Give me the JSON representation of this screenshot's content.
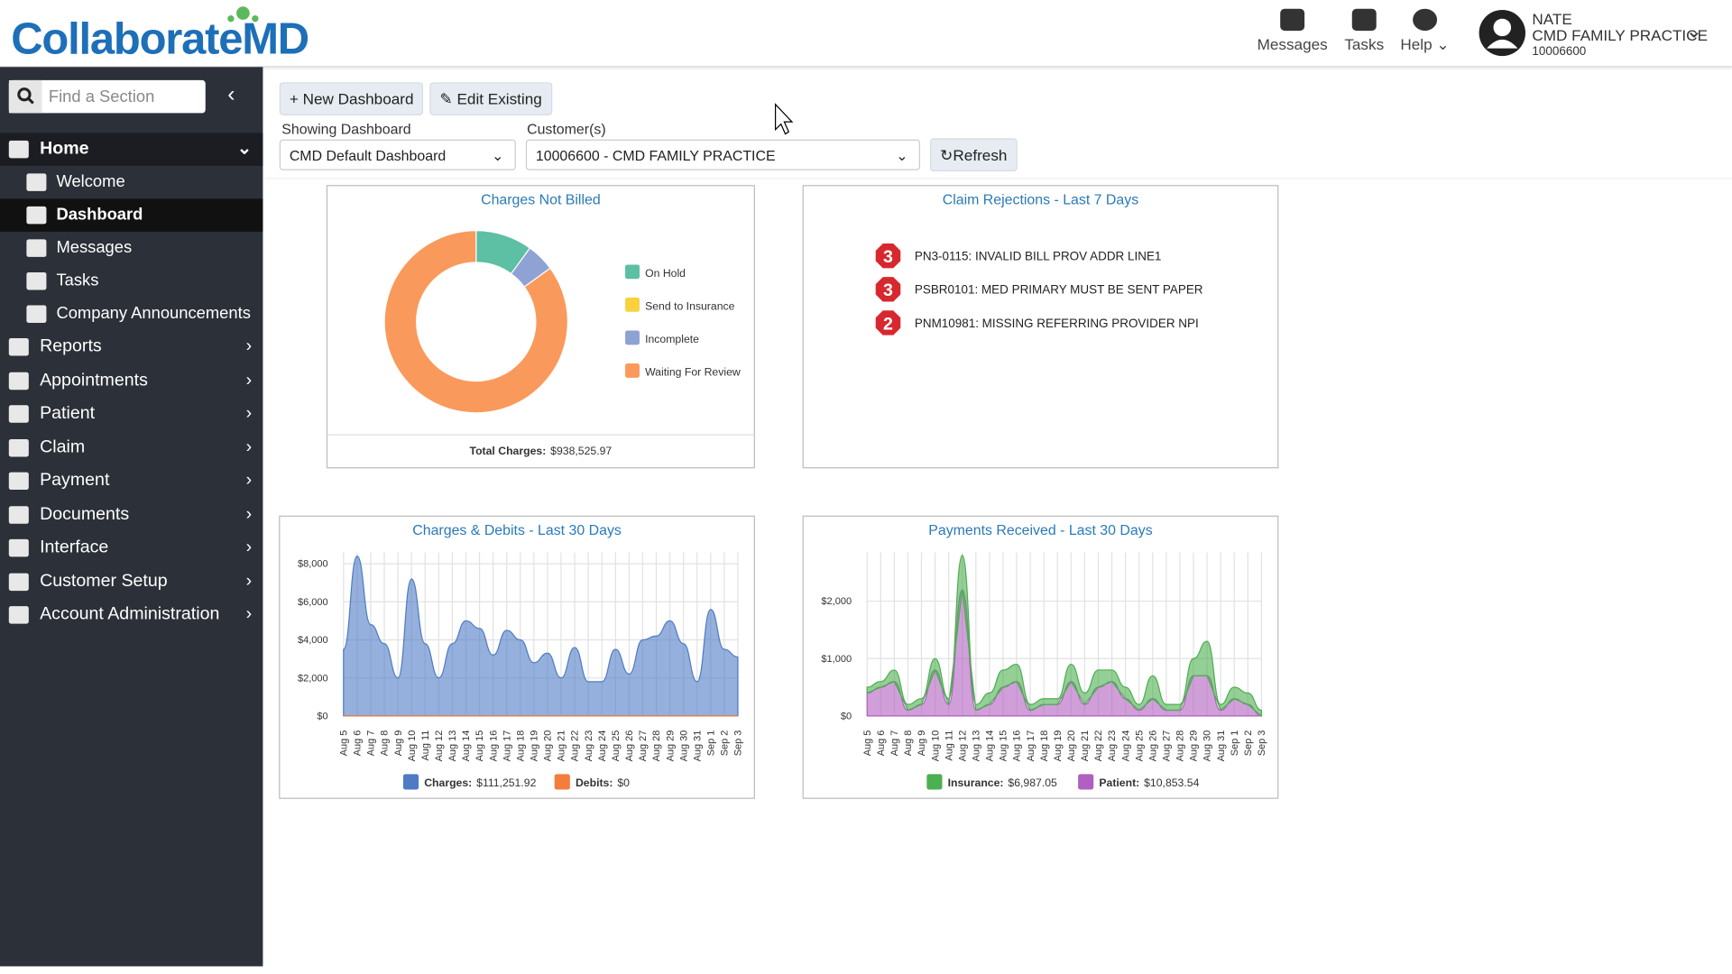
{
  "header": {
    "logo": {
      "main": "Collaborate",
      "accent": "MD"
    },
    "nav": [
      "Messages",
      "Tasks",
      "Help"
    ],
    "user": {
      "name": "NATE",
      "practice": "CMD FAMILY PRACTICE",
      "id": "10006600"
    }
  },
  "sidebar": {
    "search_placeholder": "Find a Section",
    "home": "Home",
    "home_items": [
      "Welcome",
      "Dashboard",
      "Messages",
      "Tasks",
      "Company Announcements"
    ],
    "sections": [
      "Reports",
      "Appointments",
      "Patient",
      "Claim",
      "Payment",
      "Documents",
      "Interface",
      "Customer Setup",
      "Account Administration"
    ]
  },
  "toolbar": {
    "new_dashboard": "New Dashboard",
    "edit_existing": "Edit Existing",
    "showing_label": "Showing Dashboard",
    "showing_value": "CMD Default Dashboard",
    "customer_label": "Customer(s)",
    "customer_value": "10006600 - CMD FAMILY PRACTICE",
    "refresh": "Refresh"
  },
  "claim_rejections": {
    "title": "Claim Rejections - Last 7 Days",
    "items": [
      {
        "count": 3,
        "text": "PN3-0115: INVALID BILL PROV ADDR LINE1"
      },
      {
        "count": 3,
        "text": "PSBR0101: MED PRIMARY MUST BE SENT PAPER"
      },
      {
        "count": 2,
        "text": "PNM10981: MISSING REFERRING PROVIDER NPI"
      }
    ]
  },
  "chart_data": [
    {
      "type": "pie",
      "title": "Charges Not Billed",
      "categories": [
        "On Hold",
        "Send to Insurance",
        "Incomplete",
        "Waiting For Review"
      ],
      "values": [
        10,
        0,
        5,
        85
      ],
      "colors": [
        "#5dbfa3",
        "#f7d23c",
        "#8fa2d4",
        "#f99a5c"
      ],
      "footer_label": "Total Charges:",
      "footer_value": "$938,525.97"
    },
    {
      "type": "area",
      "title": "Charges & Debits - Last 30 Days",
      "categories": [
        "Aug 5",
        "Aug 6",
        "Aug 7",
        "Aug 8",
        "Aug 9",
        "Aug 10",
        "Aug 11",
        "Aug 12",
        "Aug 13",
        "Aug 14",
        "Aug 15",
        "Aug 16",
        "Aug 17",
        "Aug 18",
        "Aug 19",
        "Aug 20",
        "Aug 21",
        "Aug 22",
        "Aug 23",
        "Aug 24",
        "Aug 25",
        "Aug 26",
        "Aug 27",
        "Aug 28",
        "Aug 29",
        "Aug 30",
        "Aug 31",
        "Sep 1",
        "Sep 2",
        "Sep 3"
      ],
      "ylim": [
        0,
        8600
      ],
      "yticks": [
        {
          "value": 0,
          "label": "$0"
        },
        {
          "value": 2000,
          "label": "$2,000"
        },
        {
          "value": 4000,
          "label": "$4,000"
        },
        {
          "value": 6000,
          "label": "$6,000"
        },
        {
          "value": 8000,
          "label": "$8,000"
        }
      ],
      "stacked": false,
      "series": [
        {
          "name": "Charges:",
          "total": "$111,251.92",
          "color": "#4f7bc4",
          "values": [
            3500,
            8400,
            4800,
            3800,
            2000,
            7200,
            3800,
            2000,
            3800,
            5000,
            4600,
            3200,
            4500,
            4000,
            2800,
            3300,
            2000,
            3600,
            1800,
            1800,
            3500,
            2200,
            4000,
            4200,
            5000,
            3800,
            1800,
            5600,
            3500,
            3100
          ]
        },
        {
          "name": "Debits:",
          "total": "$0",
          "color": "#f47c3c",
          "values": [
            0,
            0,
            0,
            0,
            0,
            0,
            0,
            0,
            0,
            0,
            0,
            0,
            0,
            0,
            0,
            0,
            0,
            0,
            0,
            0,
            0,
            0,
            0,
            0,
            0,
            0,
            0,
            0,
            0,
            0
          ]
        }
      ]
    },
    {
      "type": "area",
      "title": "Payments Received - Last 30 Days",
      "categories": [
        "Aug 5",
        "Aug 6",
        "Aug 7",
        "Aug 8",
        "Aug 9",
        "Aug 10",
        "Aug 11",
        "Aug 12",
        "Aug 13",
        "Aug 14",
        "Aug 15",
        "Aug 16",
        "Aug 17",
        "Aug 18",
        "Aug 19",
        "Aug 20",
        "Aug 21",
        "Aug 22",
        "Aug 23",
        "Aug 24",
        "Aug 25",
        "Aug 26",
        "Aug 27",
        "Aug 28",
        "Aug 29",
        "Aug 30",
        "Aug 31",
        "Sep 1",
        "Sep 2",
        "Sep 3"
      ],
      "ylim": [
        0,
        2850
      ],
      "yticks": [
        {
          "value": 0,
          "label": "$0"
        },
        {
          "value": 1000,
          "label": "$1,000"
        },
        {
          "value": 2000,
          "label": "$2,000"
        }
      ],
      "stacked": true,
      "series": [
        {
          "name": "Insurance:",
          "total": "$6,987.05",
          "color": "#4caf50",
          "values": [
            100,
            100,
            200,
            100,
            100,
            200,
            100,
            600,
            100,
            200,
            300,
            300,
            100,
            100,
            100,
            300,
            200,
            300,
            200,
            200,
            100,
            400,
            100,
            100,
            300,
            600,
            100,
            200,
            200,
            100
          ]
        },
        {
          "name": "Patient:",
          "total": "$10,853.54",
          "color": "#b15fc0",
          "values": [
            400,
            500,
            600,
            100,
            200,
            800,
            200,
            2200,
            100,
            200,
            500,
            600,
            100,
            200,
            200,
            600,
            200,
            500,
            600,
            300,
            100,
            300,
            100,
            100,
            700,
            700,
            100,
            300,
            200,
            0
          ]
        }
      ]
    }
  ]
}
